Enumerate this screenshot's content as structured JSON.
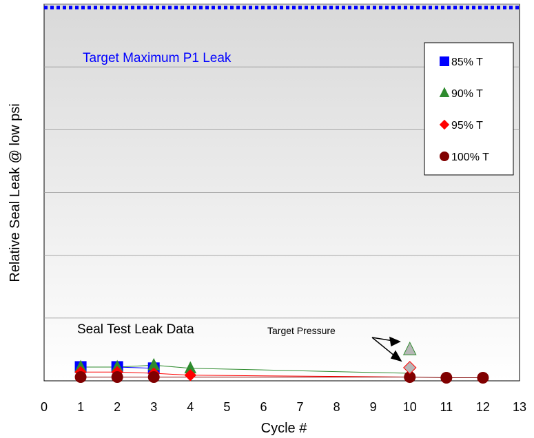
{
  "chart_data": {
    "type": "scatter",
    "title": "",
    "xlabel": "Cycle #",
    "ylabel": "Relative Seal Leak @ low psi",
    "xlim": [
      0,
      13
    ],
    "xticks": [
      0,
      1,
      2,
      3,
      4,
      5,
      6,
      7,
      8,
      9,
      10,
      11,
      12,
      13
    ],
    "ylim": [
      0,
      6
    ],
    "grid": true,
    "legend_position": "top-right",
    "target_line": {
      "label": "Target Maximum P1 Leak",
      "y": 6,
      "color": "#0000ff"
    },
    "annotations": {
      "seal_test": "Seal Test Leak Data",
      "target_pressure": "Target Pressure"
    },
    "series": [
      {
        "name": "85% T",
        "marker": "square",
        "color": "#0000ff",
        "x": [
          1,
          2,
          3
        ],
        "y": [
          0.22,
          0.22,
          0.2
        ]
      },
      {
        "name": "90% T",
        "marker": "triangle",
        "color": "#2e8b2e",
        "x": [
          1,
          2,
          3,
          4,
          10
        ],
        "y": [
          0.22,
          0.22,
          0.25,
          0.2,
          0.12
        ]
      },
      {
        "name": "95% T",
        "marker": "diamond",
        "color": "#ff0000",
        "x": [
          1,
          2,
          3,
          4,
          10
        ],
        "y": [
          0.14,
          0.14,
          0.12,
          0.09,
          0.06
        ]
      },
      {
        "name": "100% T",
        "marker": "circle",
        "color": "#800000",
        "x": [
          1,
          2,
          3,
          10,
          11,
          12
        ],
        "y": [
          0.06,
          0.06,
          0.06,
          0.06,
          0.05,
          0.05
        ]
      }
    ],
    "target_pressure_points": [
      {
        "marker": "triangle",
        "x": 10,
        "y": 0.5,
        "fill": "#b7b7b7",
        "stroke": "#2e8b2e"
      },
      {
        "marker": "diamond",
        "x": 10,
        "y": 0.21,
        "fill": "#b7b7b7",
        "stroke": "#ff0000"
      }
    ]
  }
}
